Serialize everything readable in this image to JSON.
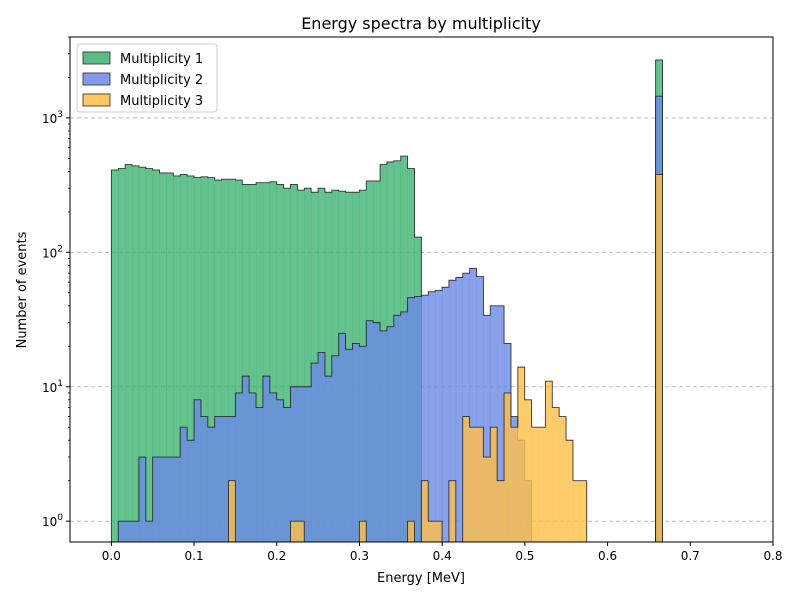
{
  "chart_data": {
    "type": "histogram",
    "title": "Energy spectra by multiplicity",
    "xlabel": "Energy [MeV]",
    "ylabel": "Number of events",
    "yscale": "log",
    "xlim": [
      -0.05,
      0.8
    ],
    "ylim": [
      0.7,
      4000
    ],
    "grid": "y-dashed",
    "legend_position": "top-left",
    "bin_width": 0.00833,
    "bin_start": 0.0,
    "x_ticks": [
      "0.0",
      "0.1",
      "0.2",
      "0.3",
      "0.4",
      "0.5",
      "0.6",
      "0.7",
      "0.8"
    ],
    "y_ticks": [
      {
        "base": "10",
        "exp": "0"
      },
      {
        "base": "10",
        "exp": "1"
      },
      {
        "base": "10",
        "exp": "2"
      },
      {
        "base": "10",
        "exp": "3"
      }
    ],
    "series": [
      {
        "name": "Multiplicity 1",
        "color": "#3cb371",
        "counts": [
          410,
          420,
          450,
          440,
          430,
          420,
          410,
          390,
          390,
          370,
          380,
          370,
          360,
          365,
          360,
          345,
          350,
          350,
          345,
          320,
          320,
          330,
          330,
          335,
          320,
          300,
          320,
          290,
          300,
          280,
          300,
          280,
          290,
          285,
          280,
          280,
          290,
          340,
          340,
          450,
          470,
          480,
          520,
          420,
          130,
          0,
          0,
          0,
          0,
          0,
          0,
          0,
          0,
          0,
          0,
          0,
          0,
          0,
          0,
          0,
          0,
          0,
          0,
          0,
          0,
          0,
          0,
          0,
          0,
          0,
          0,
          0,
          0,
          0,
          0,
          0,
          0,
          0,
          0,
          2700
        ]
      },
      {
        "name": "Multiplicity 2",
        "color": "#6b8ae6",
        "counts": [
          0,
          1,
          1,
          1,
          3,
          1,
          3,
          3,
          3,
          3,
          5,
          4,
          8,
          6,
          5,
          6,
          6,
          6,
          9,
          12,
          9,
          7,
          12,
          9,
          8,
          7,
          10,
          10,
          10,
          15,
          18,
          12,
          17,
          25,
          19,
          21,
          20,
          31,
          30,
          26,
          28,
          34,
          36,
          46,
          47,
          48,
          51,
          52,
          55,
          62,
          65,
          70,
          76,
          66,
          34,
          40,
          40,
          21,
          6,
          4,
          2,
          0,
          0,
          0,
          0,
          0,
          0,
          0,
          0,
          0,
          0,
          0,
          0,
          0,
          0,
          0,
          0,
          0,
          0,
          1450
        ]
      },
      {
        "name": "Multiplicity 3",
        "color": "#ffbf47",
        "counts": [
          0,
          0,
          0,
          0,
          0,
          0,
          0,
          0,
          0,
          0,
          0,
          0,
          0,
          0,
          0,
          0,
          0,
          2,
          0,
          0,
          0,
          0,
          0,
          0,
          0,
          0,
          1,
          1,
          0,
          0,
          0,
          0,
          0,
          0,
          0,
          0,
          1,
          0,
          0,
          0,
          0,
          0,
          0,
          1,
          0,
          2,
          1,
          1,
          0,
          2,
          0,
          6,
          5,
          5,
          3,
          5,
          2,
          9,
          5,
          14,
          8,
          5,
          5,
          11,
          7,
          6,
          4,
          2,
          2,
          0,
          0,
          0,
          0,
          0,
          0,
          0,
          0,
          0,
          0,
          380
        ]
      }
    ]
  }
}
